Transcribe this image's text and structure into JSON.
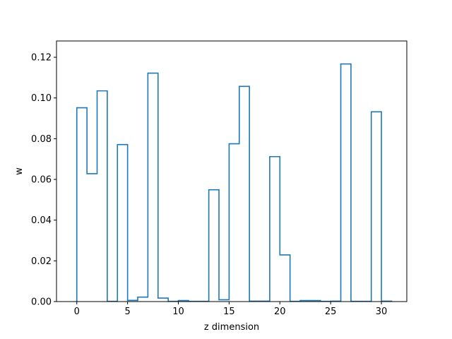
{
  "chart_data": {
    "type": "line",
    "style": "step-histogram",
    "title": "",
    "xlabel": "z dimension",
    "ylabel": "w",
    "xlim": [
      -2,
      32.5
    ],
    "ylim": [
      0,
      0.128
    ],
    "xticks": [
      0,
      5,
      10,
      15,
      20,
      25,
      30
    ],
    "yticks": [
      0.0,
      0.02,
      0.04,
      0.06,
      0.08,
      0.1,
      0.12
    ],
    "xtick_labels": [
      "0",
      "5",
      "10",
      "15",
      "20",
      "25",
      "30"
    ],
    "ytick_labels": [
      "0.00",
      "0.02",
      "0.04",
      "0.06",
      "0.08",
      "0.10",
      "0.12"
    ],
    "grid": false,
    "legend": "none",
    "color": "#1f77b4",
    "bin_edges": [
      0,
      1,
      2,
      3,
      4,
      5,
      6,
      7,
      8,
      9,
      10,
      11,
      12,
      13,
      14,
      15,
      16,
      17,
      18,
      19,
      20,
      21,
      22,
      23,
      24,
      25,
      26,
      27,
      28,
      29,
      30,
      31
    ],
    "values": [
      0.0952,
      0.0628,
      0.1035,
      0.0001,
      0.0771,
      0.0006,
      0.0022,
      0.1122,
      0.0017,
      0.0001,
      0.0005,
      0.0001,
      0.0001,
      0.0549,
      0.0009,
      0.0775,
      0.1057,
      0.0002,
      0.0002,
      0.0712,
      0.0229,
      0.0001,
      0.0005,
      0.0005,
      0.0001,
      0.0002,
      0.1167,
      0.0001,
      0.0001,
      0.0932,
      0.0002
    ]
  }
}
